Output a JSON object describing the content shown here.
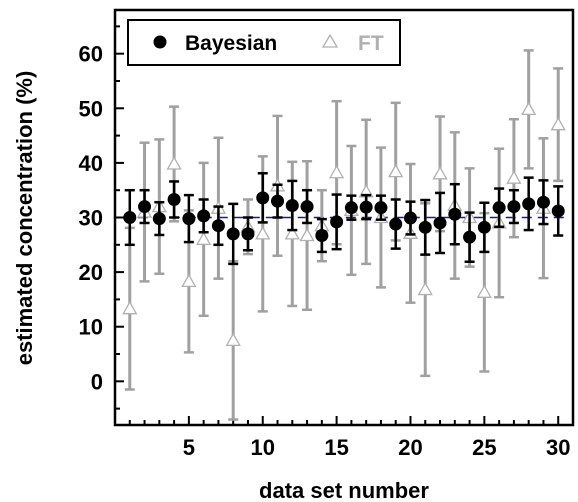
{
  "chart_data": {
    "type": "scatter",
    "title": "",
    "xlabel": "data set number",
    "ylabel": "estimated concentration (%)",
    "xlim": [
      0,
      31
    ],
    "ylim": [
      -8,
      68
    ],
    "x_ticks": [
      5,
      10,
      15,
      20,
      25,
      30
    ],
    "y_ticks": [
      0,
      10,
      20,
      30,
      40,
      50,
      60
    ],
    "reference_line": {
      "y": 30,
      "style": "dashed",
      "color": "#1a1a8c"
    },
    "legend": {
      "position": "top-left",
      "entries": [
        "Bayesian",
        "FT"
      ]
    },
    "grid": false,
    "series": [
      {
        "name": "Bayesian",
        "marker": "filled-circle",
        "color": "#000000",
        "errorbar_color": "#000000",
        "x": [
          1,
          2,
          3,
          4,
          5,
          6,
          7,
          8,
          9,
          10,
          11,
          12,
          13,
          14,
          15,
          16,
          17,
          18,
          19,
          20,
          21,
          22,
          23,
          24,
          25,
          26,
          27,
          28,
          29,
          30
        ],
        "y": [
          30.0,
          32.0,
          29.8,
          33.3,
          29.8,
          30.3,
          28.5,
          27.0,
          27.0,
          33.6,
          33.0,
          32.2,
          32.0,
          26.7,
          29.2,
          31.8,
          31.9,
          31.8,
          28.8,
          29.9,
          28.2,
          29.0,
          30.6,
          26.4,
          28.2,
          31.8,
          32.0,
          32.5,
          32.8,
          31.2
        ],
        "err": [
          5.0,
          3.0,
          3.0,
          3.3,
          4.3,
          3.0,
          3.5,
          5.5,
          3.0,
          4.5,
          3.0,
          4.5,
          3.0,
          3.0,
          5.0,
          2.2,
          2.2,
          2.2,
          4.5,
          3.0,
          5.0,
          5.5,
          5.5,
          4.5,
          4.5,
          3.5,
          3.0,
          4.8,
          4.0,
          4.5
        ]
      },
      {
        "name": "FT",
        "marker": "open-triangle",
        "color": "#b0b0b0",
        "errorbar_color": "#a0a0a0",
        "x": [
          1,
          2,
          3,
          4,
          5,
          6,
          7,
          8,
          9,
          10,
          11,
          12,
          13,
          14,
          15,
          16,
          17,
          18,
          19,
          20,
          21,
          22,
          23,
          24,
          25,
          26,
          27,
          28,
          29,
          30
        ],
        "y": [
          13.3,
          31.0,
          32.0,
          39.8,
          18.3,
          26.0,
          31.7,
          7.5,
          28.3,
          27.0,
          35.8,
          27.0,
          26.7,
          28.5,
          38.2,
          31.3,
          34.7,
          30.0,
          38.4,
          27.1,
          16.8,
          38.0,
          32.2,
          30.0,
          16.3,
          29.0,
          37.2,
          49.8,
          31.7,
          47.0
        ],
        "err": [
          14.8,
          12.7,
          12.3,
          10.5,
          13.0,
          14.0,
          12.9,
          14.5,
          5.0,
          14.2,
          12.8,
          13.2,
          13.6,
          6.5,
          13.1,
          11.8,
          13.2,
          12.8,
          12.6,
          12.7,
          15.8,
          10.5,
          13.4,
          9.0,
          14.5,
          13.6,
          10.8,
          10.8,
          12.8,
          10.3
        ]
      }
    ]
  }
}
